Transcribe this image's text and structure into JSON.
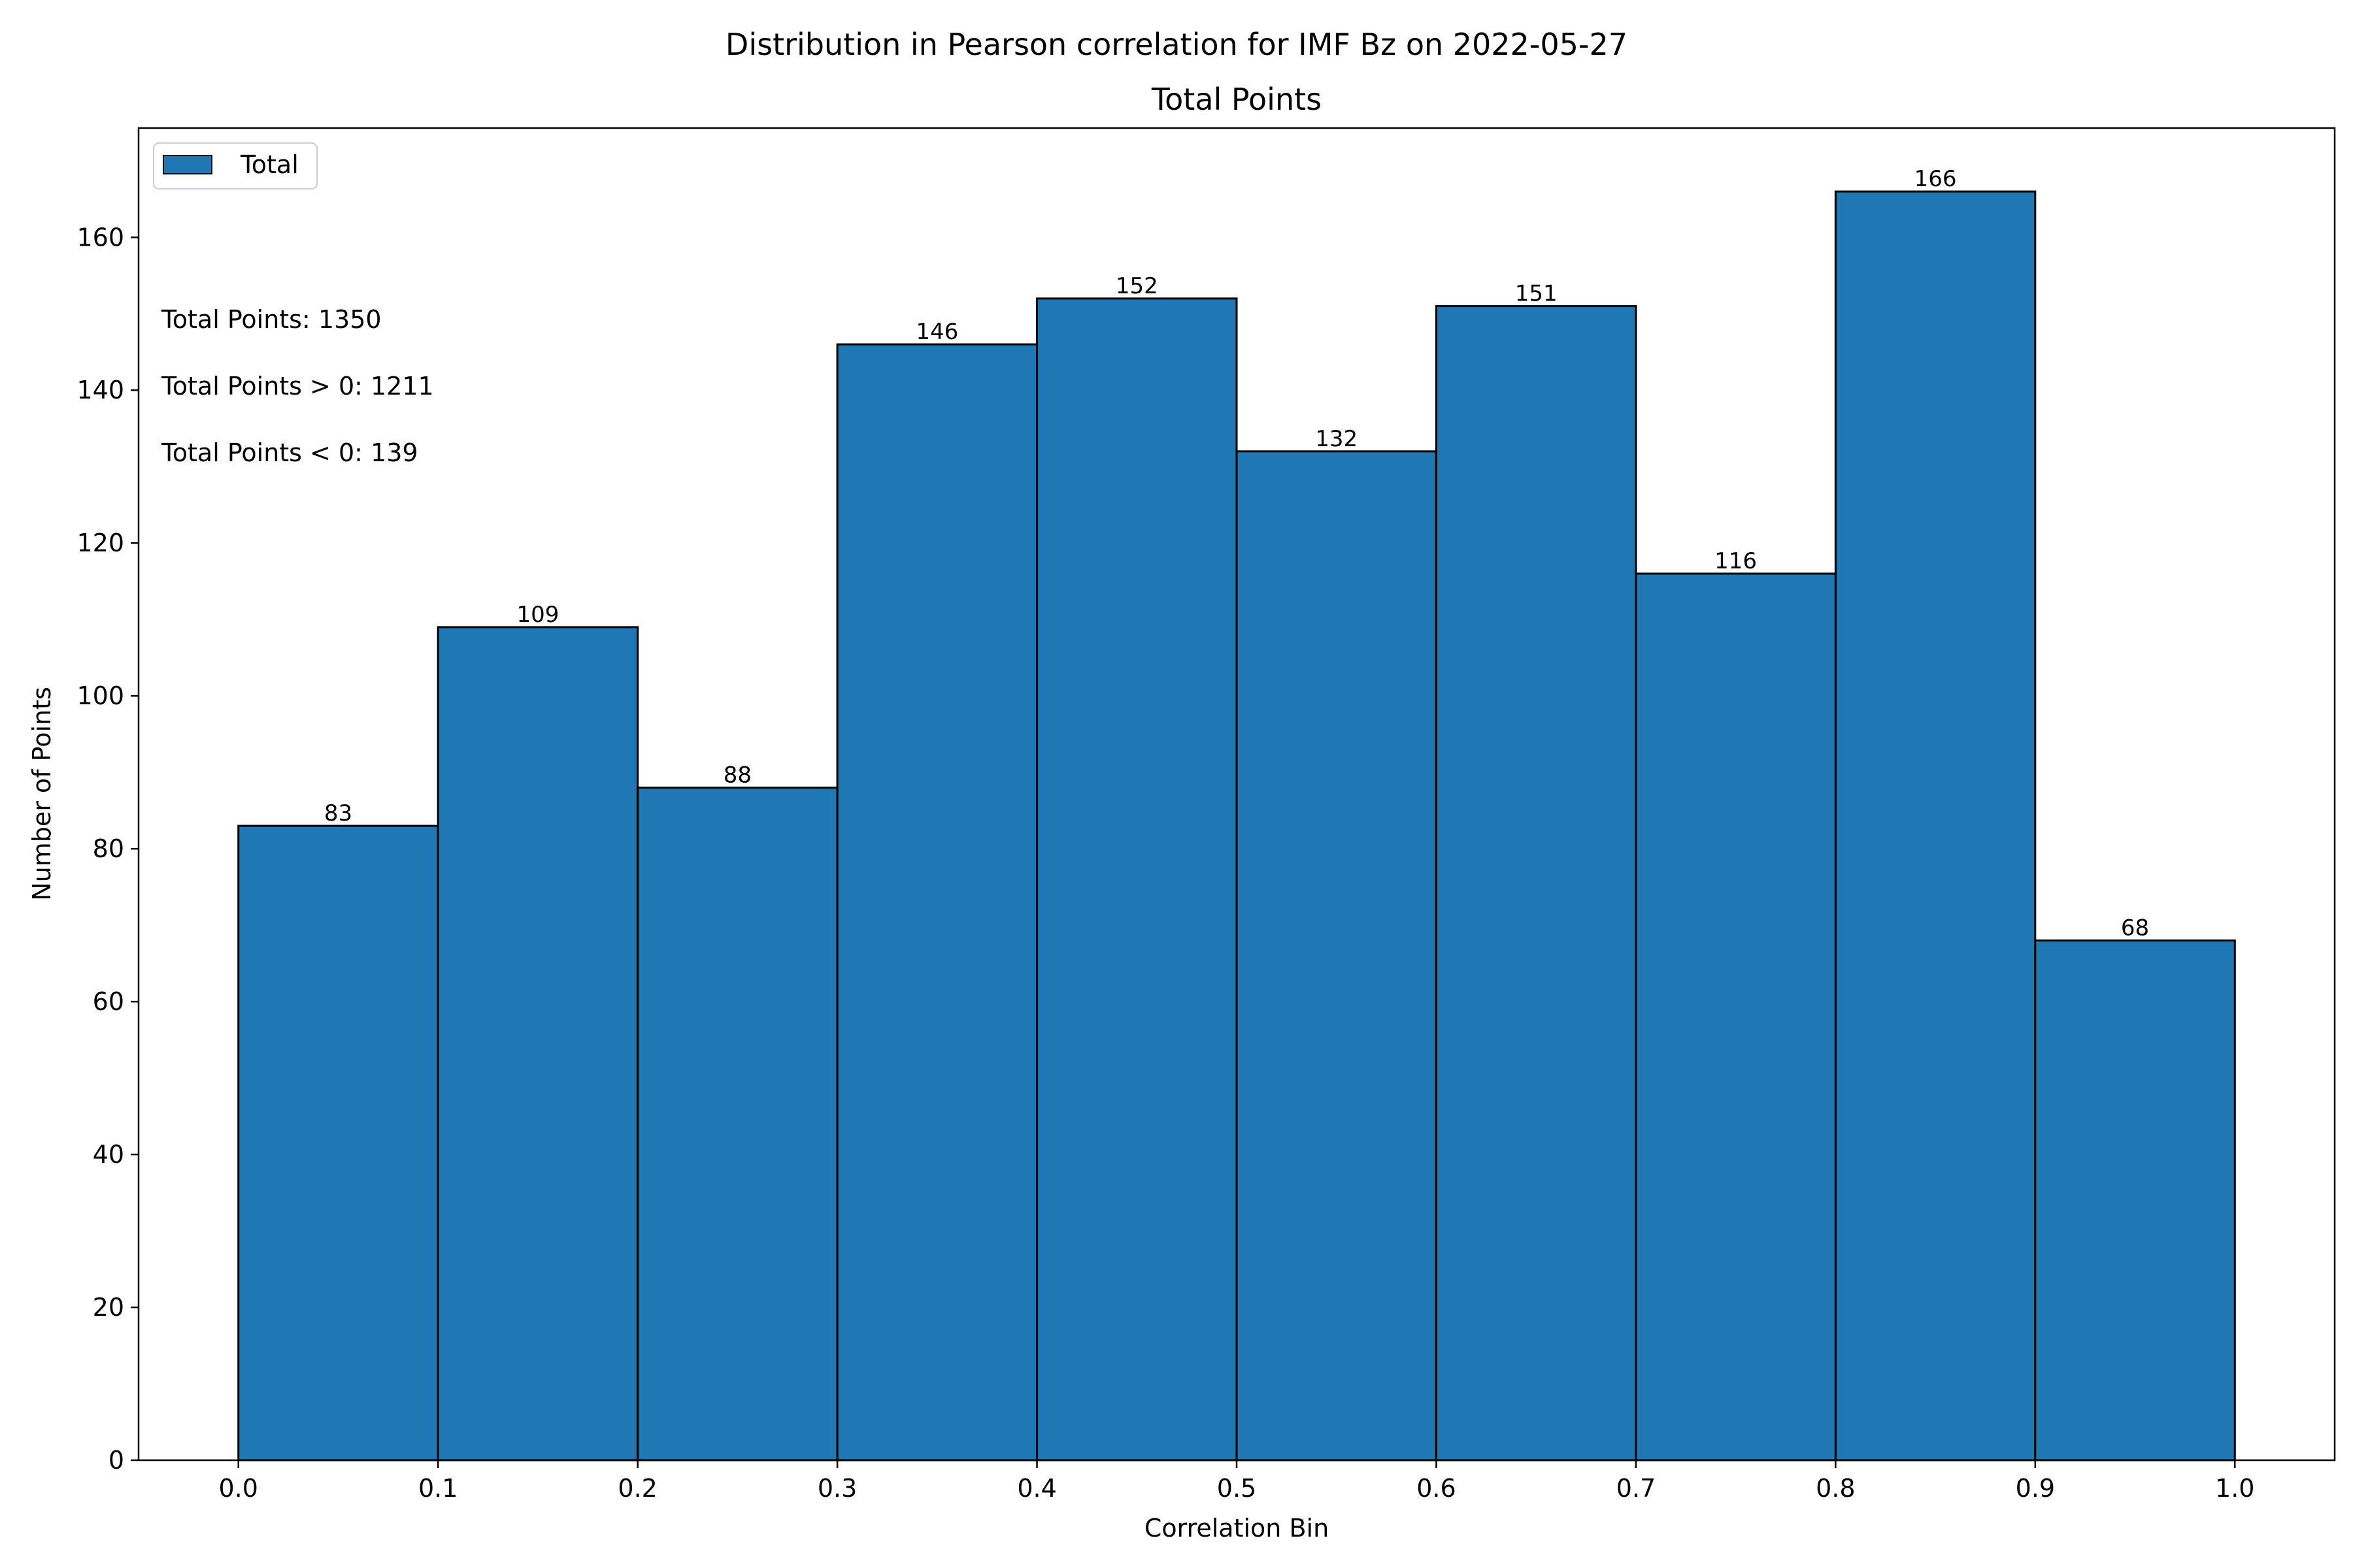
{
  "figure": {
    "suptitle": "Distribution in Pearson correlation for IMF Bz on 2022-05-27"
  },
  "colors": {
    "bar_fill": "#1f77b4",
    "bar_edge": "#000000",
    "axes": "#000000",
    "background": "#ffffff"
  },
  "chart_data": {
    "type": "bar",
    "title": "Total Points",
    "xlabel": "Correlation Bin",
    "ylabel": "Number of Points",
    "bin_edges": [
      0.0,
      0.1,
      0.2,
      0.3,
      0.4,
      0.5,
      0.6,
      0.7,
      0.8,
      0.9,
      1.0
    ],
    "series": [
      {
        "name": "Total",
        "values": [
          83,
          109,
          88,
          146,
          152,
          132,
          151,
          116,
          166,
          68
        ]
      }
    ],
    "bar_labels": [
      "83",
      "109",
      "88",
      "146",
      "152",
      "132",
      "151",
      "116",
      "166",
      "68"
    ],
    "xlim": [
      -0.05,
      1.05
    ],
    "ylim": [
      0,
      174.3
    ],
    "xticks": [
      0.0,
      0.1,
      0.2,
      0.3,
      0.4,
      0.5,
      0.6,
      0.7,
      0.8,
      0.9,
      1.0
    ],
    "xtick_labels": [
      "0.0",
      "0.1",
      "0.2",
      "0.3",
      "0.4",
      "0.5",
      "0.6",
      "0.7",
      "0.8",
      "0.9",
      "1.0"
    ],
    "yticks": [
      0,
      20,
      40,
      60,
      80,
      100,
      120,
      140,
      160
    ],
    "ytick_labels": [
      "0",
      "20",
      "40",
      "60",
      "80",
      "100",
      "120",
      "140",
      "160"
    ],
    "grid": false,
    "legend_position": "top-left",
    "annotations": [
      "Total Points: 1350",
      "Total Points > 0: 1211",
      "Total Points < 0: 139"
    ]
  }
}
